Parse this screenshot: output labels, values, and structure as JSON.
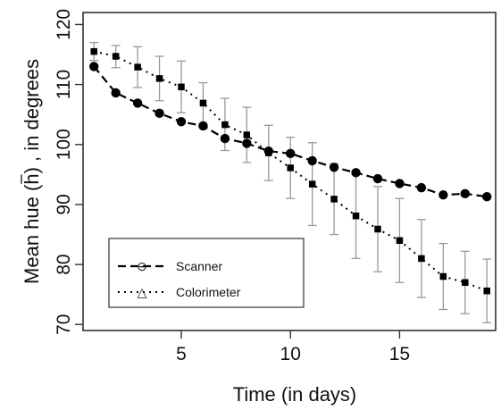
{
  "chart_data": {
    "type": "line",
    "xlabel": "Time (in days)",
    "ylabel": "Mean hue ( h ) , in degrees",
    "ylabel_parts": {
      "before": "Mean hue (",
      "symbol": "h",
      "after": ") , in degrees"
    },
    "xlim": [
      0.5,
      19.4
    ],
    "ylim": [
      69,
      122
    ],
    "xticks": [
      5,
      10,
      15
    ],
    "yticks": [
      70,
      80,
      90,
      100,
      110,
      120
    ],
    "grid": false,
    "legend_position": "bottom-left",
    "series": [
      {
        "name": "Scanner",
        "style": "dashed",
        "marker": "circle",
        "color": "#000000",
        "x": [
          1,
          2,
          3,
          4,
          5,
          6,
          7,
          8,
          9,
          10,
          11,
          12,
          13,
          14,
          15,
          16,
          17,
          18,
          19
        ],
        "y": [
          113.0,
          108.6,
          106.9,
          105.2,
          103.8,
          103.1,
          101.0,
          100.2,
          98.9,
          98.5,
          97.3,
          96.2,
          95.3,
          94.3,
          93.5,
          92.8,
          91.6,
          91.8,
          91.3
        ]
      },
      {
        "name": "Colorimeter",
        "style": "dotted",
        "marker": "square",
        "color": "#000000",
        "x": [
          1,
          2,
          3,
          4,
          5,
          6,
          7,
          8,
          9,
          10,
          11,
          12,
          13,
          14,
          15,
          16,
          17,
          18,
          19
        ],
        "y": [
          115.5,
          114.7,
          112.9,
          111.0,
          109.6,
          106.9,
          103.3,
          101.6,
          98.6,
          96.1,
          93.4,
          90.9,
          88.1,
          85.9,
          84.0,
          81.0,
          78.0,
          77.0,
          75.6
        ],
        "error_low": [
          114.0,
          112.8,
          109.5,
          107.3,
          105.3,
          103.5,
          99.0,
          97.0,
          94.0,
          91.0,
          86.5,
          85.0,
          81.0,
          78.8,
          77.0,
          74.5,
          72.5,
          71.8,
          70.3
        ],
        "error_high": [
          117.0,
          116.5,
          116.3,
          114.7,
          113.9,
          110.3,
          107.7,
          106.2,
          103.2,
          101.2,
          100.3,
          96.8,
          95.2,
          93.0,
          91.0,
          87.5,
          83.5,
          82.2,
          80.9
        ]
      }
    ],
    "legend": [
      {
        "label": "Scanner",
        "symbol": "⊖"
      },
      {
        "label": "Colorimeter",
        "symbol": "△"
      }
    ]
  }
}
